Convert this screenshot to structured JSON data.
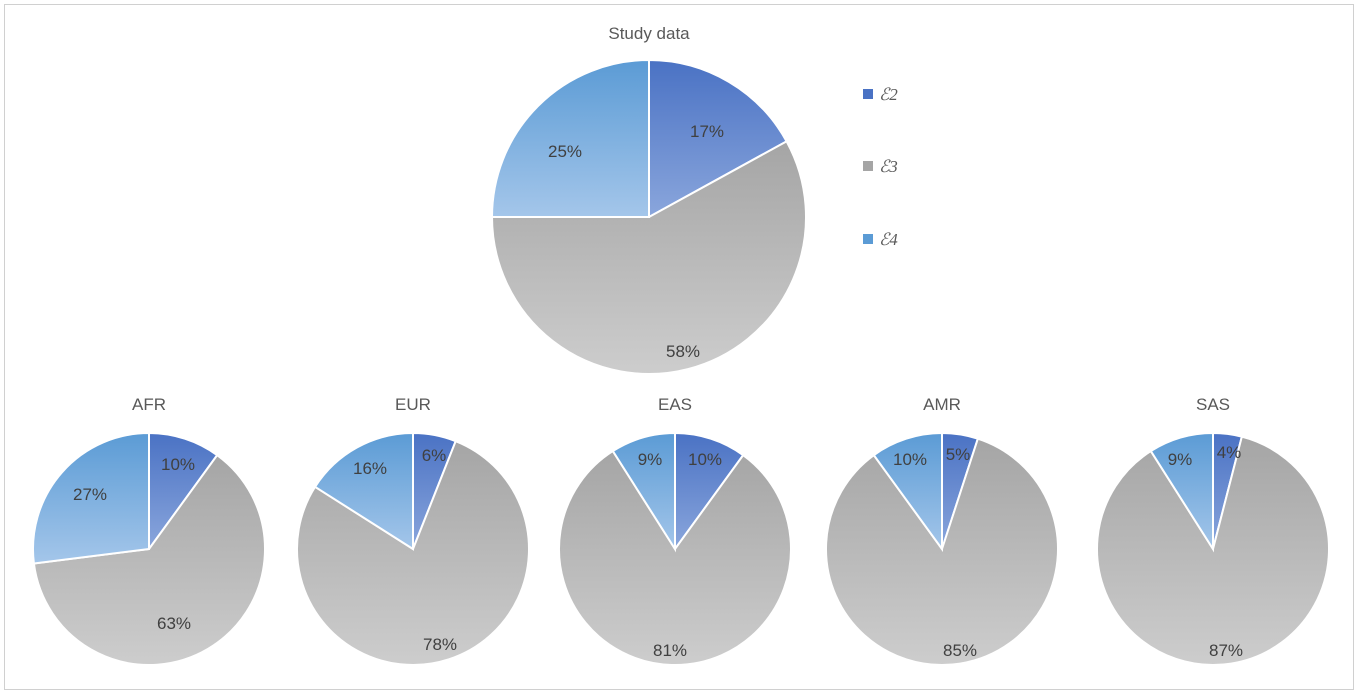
{
  "chart_data": {
    "type": "pie",
    "series_names": [
      "ℰ2",
      "ℰ3",
      "ℰ4"
    ],
    "colors": {
      "s0": [
        "#4a72c4",
        "#8aa6dc"
      ],
      "s1": [
        "#a5a5a5",
        "#cdcdcd"
      ],
      "s2": [
        "#5b9bd5",
        "#a4c6ea"
      ]
    },
    "legend_position": "right-of-main",
    "pies": [
      {
        "title": "Study data",
        "values": [
          17,
          58,
          25
        ],
        "labels": [
          "17%",
          "58%",
          "25%"
        ]
      },
      {
        "title": "AFR",
        "values": [
          10,
          63,
          27
        ],
        "labels": [
          "10%",
          "63%",
          "27%"
        ]
      },
      {
        "title": "EUR",
        "values": [
          6,
          78,
          16
        ],
        "labels": [
          "6%",
          "78%",
          "16%"
        ]
      },
      {
        "title": "EAS",
        "values": [
          10,
          81,
          9
        ],
        "labels": [
          "10%",
          "81%",
          "9%"
        ]
      },
      {
        "title": "AMR",
        "values": [
          5,
          85,
          10
        ],
        "labels": [
          "5%",
          "85%",
          "10%"
        ]
      },
      {
        "title": "SAS",
        "values": [
          4,
          87,
          9
        ],
        "labels": [
          "4%",
          "87%",
          "9%"
        ]
      }
    ]
  }
}
